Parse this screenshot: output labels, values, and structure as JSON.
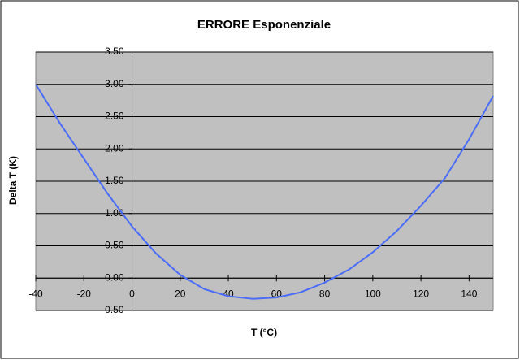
{
  "chart_data": {
    "type": "line",
    "title": "ERRORE Esponenziale",
    "x_label": "T (°C)",
    "y_label": "Delta T (K)",
    "x": [
      -40,
      -30,
      -20,
      -10,
      0,
      10,
      20,
      30,
      40,
      50,
      60,
      70,
      80,
      90,
      100,
      110,
      120,
      130,
      140,
      150
    ],
    "series": [
      {
        "color": "#4a6cf7",
        "values": [
          3.0,
          2.4,
          1.85,
          1.3,
          0.8,
          0.38,
          0.05,
          -0.17,
          -0.28,
          -0.32,
          -0.3,
          -0.22,
          -0.07,
          0.13,
          0.4,
          0.73,
          1.12,
          1.55,
          2.15,
          2.82
        ]
      }
    ],
    "xlim": [
      -40,
      150
    ],
    "xticks": [
      -40,
      -20,
      0,
      20,
      40,
      60,
      80,
      100,
      120,
      140
    ],
    "ylim": [
      -0.5,
      3.5
    ],
    "yticks": [
      {
        "value": -0.5,
        "label": "-0.50"
      },
      {
        "value": 0,
        "label": "0.00"
      },
      {
        "value": 0.5,
        "label": "0.50"
      },
      {
        "value": 1,
        "label": "1.00"
      },
      {
        "value": 1.5,
        "label": "1.50"
      },
      {
        "value": 2,
        "label": "2.00"
      },
      {
        "value": 2.5,
        "label": "2.50"
      },
      {
        "value": 3,
        "label": "3.00"
      },
      {
        "value": 3.5,
        "label": "3.50"
      }
    ],
    "grid": true,
    "plot_background": "#c0c0c0"
  }
}
